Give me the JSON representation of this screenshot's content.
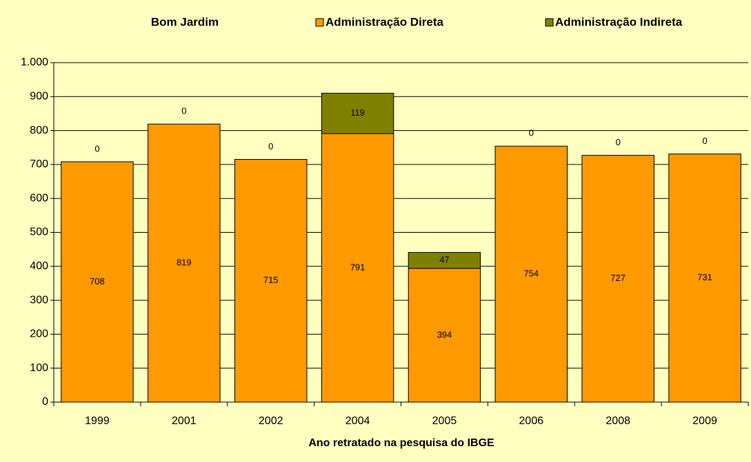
{
  "chart_data": {
    "type": "stacked_bar",
    "title": "Bom Jardim",
    "x_label": "Ano retratado na pesquisa do IBGE",
    "categories": [
      "1999",
      "2001",
      "2002",
      "2004",
      "2005",
      "2006",
      "2008",
      "2009"
    ],
    "series": [
      {
        "name": "Administração Direta",
        "color": "#ff9900",
        "values": [
          708,
          819,
          715,
          791,
          394,
          754,
          727,
          731
        ]
      },
      {
        "name": "Administração Indireta",
        "color": "#808000",
        "values": [
          0,
          0,
          0,
          119,
          47,
          0,
          0,
          0
        ]
      }
    ],
    "ylim": [
      0,
      1000
    ],
    "yticks": [
      0,
      100,
      200,
      300,
      400,
      500,
      600,
      700,
      800,
      900,
      {
        "value": 1000,
        "label": "1.000"
      }
    ],
    "grid": true
  }
}
